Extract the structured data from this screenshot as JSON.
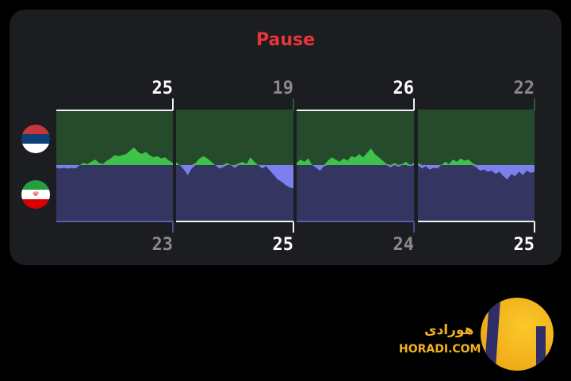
{
  "chart_data": {
    "type": "area",
    "title": "Pause",
    "teams": [
      {
        "name": "Serbia",
        "flag": "serbia-flag",
        "color": "#3ec24a",
        "bg": "#264a2c"
      },
      {
        "name": "Iran",
        "flag": "iran-flag",
        "color": "#7b80ee",
        "bg": "#343560"
      }
    ],
    "ylim": [
      -1,
      1
    ],
    "sets": [
      {
        "top_score": "25",
        "bottom_score": "23",
        "winner": "top",
        "values": [
          -0.05,
          -0.06,
          -0.05,
          -0.06,
          -0.05,
          -0.06,
          0,
          0.04,
          0.02,
          0.06,
          0.1,
          0.04,
          0.02,
          0.08,
          0.12,
          0.18,
          0.16,
          0.18,
          0.2,
          0.26,
          0.32,
          0.24,
          0.2,
          0.24,
          0.18,
          0.14,
          0.16,
          0.12,
          0.14,
          0.08,
          0.04
        ]
      },
      {
        "top_score": "19",
        "bottom_score": "25",
        "winner": "bottom",
        "values": [
          0.05,
          0,
          -0.08,
          -0.18,
          -0.06,
          0.04,
          0.12,
          0.16,
          0.12,
          0.06,
          0,
          -0.06,
          -0.04,
          0.04,
          0,
          -0.05,
          0.03,
          0.06,
          0.02,
          0.14,
          0.06,
          0,
          -0.06,
          -0.02,
          -0.1,
          -0.18,
          -0.26,
          -0.3,
          -0.36,
          -0.4,
          -0.42
        ]
      },
      {
        "top_score": "26",
        "bottom_score": "24",
        "winner": "top",
        "values": [
          0.04,
          0.1,
          0.06,
          0.12,
          0,
          -0.05,
          -0.1,
          -0.02,
          0.08,
          0.14,
          0.1,
          0.06,
          0.12,
          0.08,
          0.16,
          0.14,
          0.2,
          0.14,
          0.22,
          0.3,
          0.2,
          0.14,
          0.08,
          0.02,
          -0.04,
          0.04,
          -0.03,
          0.02,
          0.06,
          -0.02,
          0.04
        ]
      },
      {
        "top_score": "22",
        "bottom_score": "25",
        "winner": "bottom",
        "values": [
          0.04,
          -0.06,
          -0.02,
          -0.08,
          -0.05,
          -0.06,
          0,
          0.06,
          0.02,
          0.1,
          0.06,
          0.12,
          0.08,
          0.1,
          0.04,
          -0.04,
          -0.1,
          -0.08,
          -0.12,
          -0.1,
          -0.16,
          -0.12,
          -0.2,
          -0.26,
          -0.16,
          -0.2,
          -0.12,
          -0.18,
          -0.1,
          -0.14,
          -0.12
        ]
      }
    ]
  },
  "watermark": {
    "arabic": "هورادی",
    "latin": "HORADI.COM"
  }
}
